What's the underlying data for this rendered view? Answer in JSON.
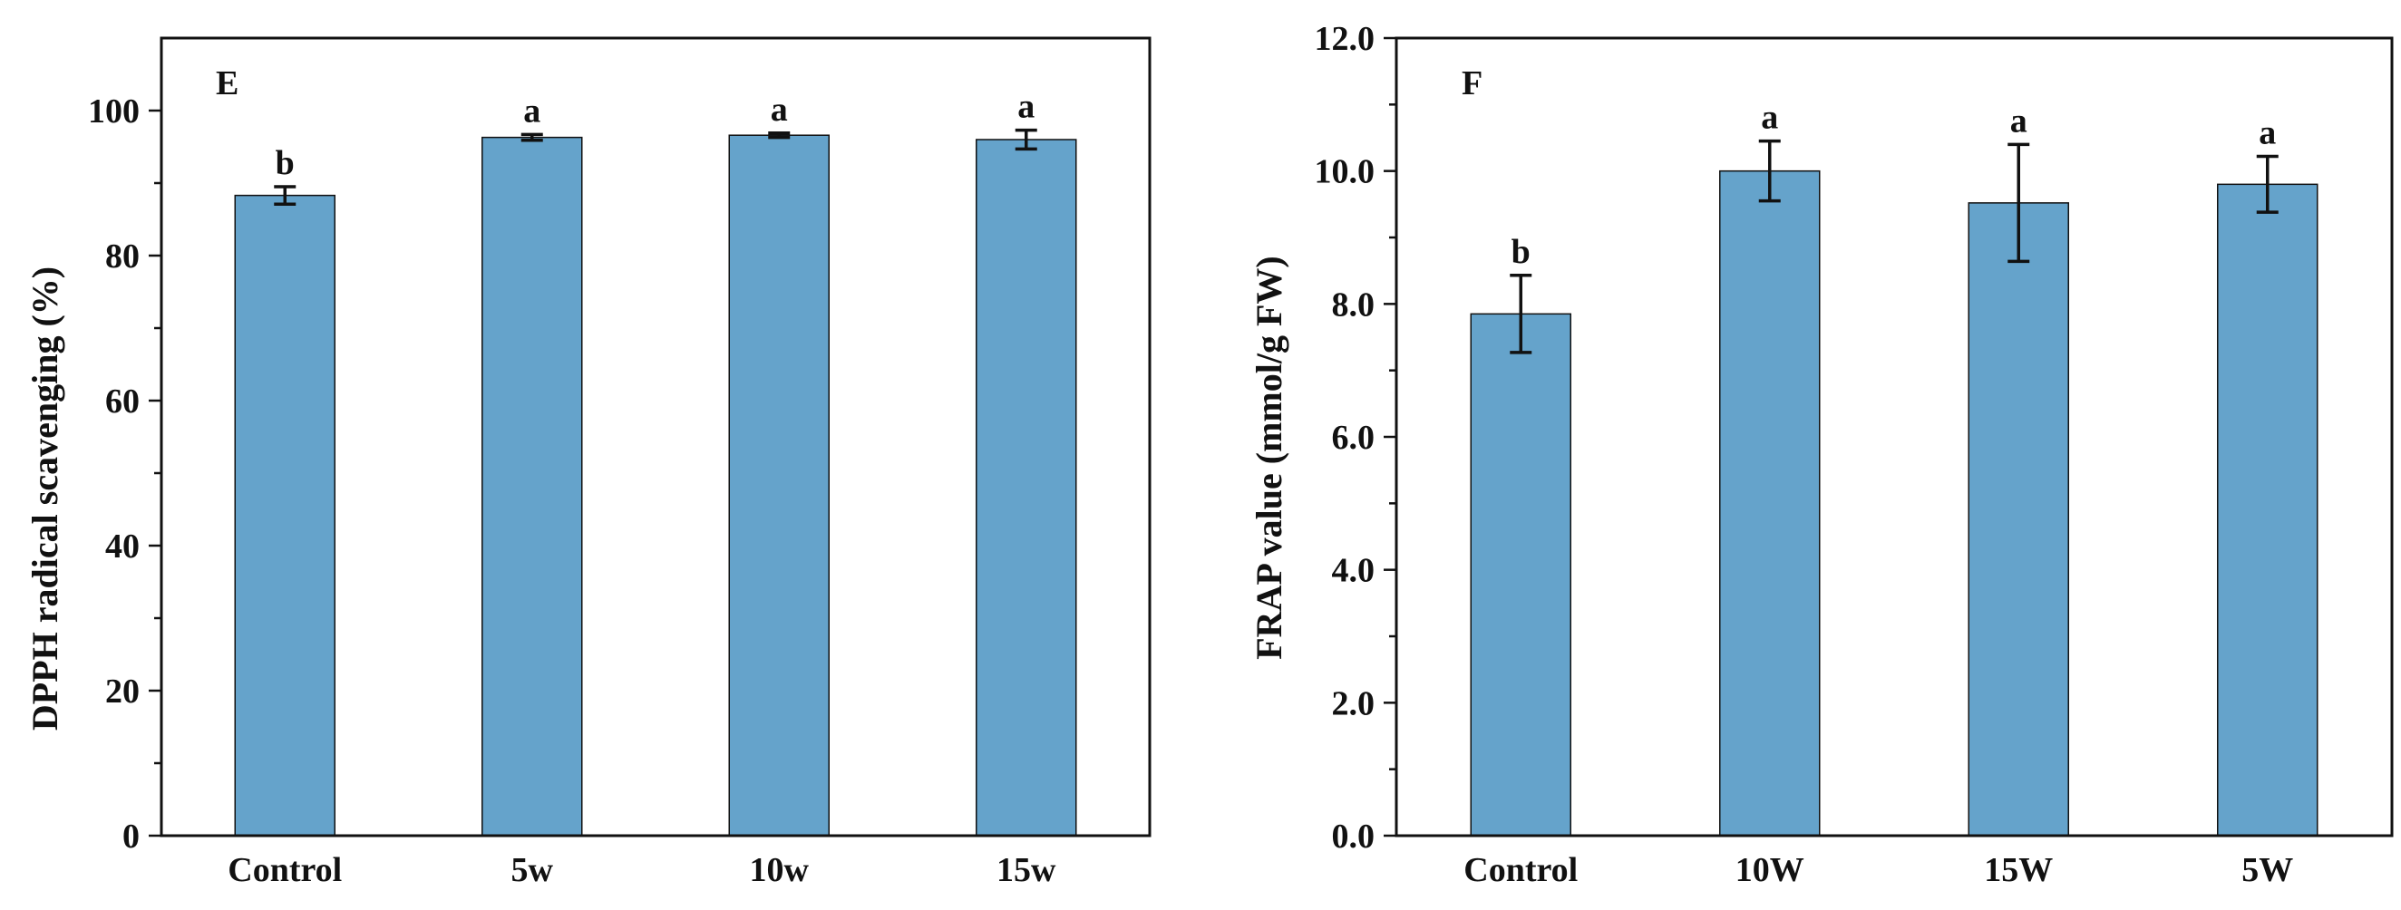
{
  "chart_data": [
    {
      "type": "bar",
      "panel": "E",
      "title": "",
      "xlabel": "",
      "ylabel": "DPPH radical scavenging (%)",
      "ylim": [
        0,
        110
      ],
      "yticks": [
        0,
        20,
        40,
        60,
        80,
        100
      ],
      "ytick_labels": [
        "0",
        "20",
        "40",
        "60",
        "80",
        "100"
      ],
      "categories": [
        "Control",
        "5w",
        "10w",
        "15w"
      ],
      "values": [
        88.3,
        96.3,
        96.6,
        96.0
      ],
      "errors": [
        1.2,
        0.4,
        0.3,
        1.3
      ],
      "significance": [
        "b",
        "a",
        "a",
        "a"
      ],
      "bar_color": "#65a3cb"
    },
    {
      "type": "bar",
      "panel": "F",
      "title": "",
      "xlabel": "",
      "ylabel": "FRAP value (mmol/g FW)",
      "ylim": [
        0,
        12
      ],
      "yticks": [
        0,
        2,
        4,
        6,
        8,
        10,
        12
      ],
      "ytick_labels": [
        "0.0",
        "2.0",
        "4.0",
        "6.0",
        "8.0",
        "10.0",
        "12.0"
      ],
      "categories": [
        "Control",
        "10W",
        "15W",
        "5W"
      ],
      "values": [
        7.85,
        10.0,
        9.52,
        9.8
      ],
      "errors": [
        0.58,
        0.45,
        0.88,
        0.42
      ],
      "significance": [
        "b",
        "a",
        "a",
        "a"
      ],
      "bar_color": "#65a3cb"
    }
  ]
}
